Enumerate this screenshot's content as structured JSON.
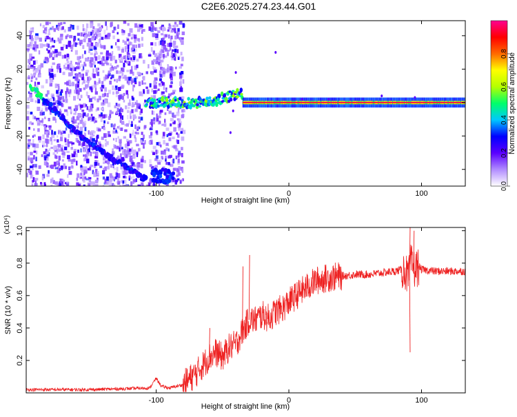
{
  "title": "C2E6.2025.274.23.44.G01",
  "chart_data": [
    {
      "type": "heatmap",
      "xlabel": "Height of straight line (km)",
      "ylabel": "Frequency (Hz)",
      "xlim": [
        -198,
        133
      ],
      "ylim": [
        -50,
        49
      ],
      "xticks": [
        -100,
        0,
        100
      ],
      "yticks": [
        -40,
        -20,
        0,
        20,
        40
      ],
      "colorbar": {
        "label": "Normalized spectral amplitude",
        "range": [
          0,
          1
        ],
        "ticks": [
          0.0,
          0.2,
          0.4,
          0.6,
          0.8
        ],
        "colors": [
          "#ffffff",
          "#b18cff",
          "#5a00ff",
          "#0000ff",
          "#00c8ff",
          "#00ff6a",
          "#b4ff00",
          "#ffff00",
          "#ff6a00",
          "#ff0000",
          "#ff0090"
        ]
      },
      "features": {
        "carrier_line": {
          "x_range": [
            -35,
            133
          ],
          "frequency": 0,
          "amplitude": 0.95
        },
        "chirp_branch": {
          "x": [
            -195,
            -180,
            -160,
            -140,
            -120,
            -108
          ],
          "frequency": [
            10,
            -2,
            -18,
            -30,
            -40,
            -46
          ]
        },
        "noise_region": {
          "x_range": [
            -198,
            -80
          ]
        },
        "gap_columns": [
          -110,
          -85
        ]
      }
    },
    {
      "type": "line",
      "xlabel": "Height of straight line (km)",
      "ylabel": "SNR (10 * v/v)",
      "y_multiplier": "(x10⁴)",
      "xlim": [
        -198,
        133
      ],
      "ylim": [
        0,
        1.02
      ],
      "xticks": [
        -100,
        0,
        100
      ],
      "yticks": [
        0.2,
        0.4,
        0.6,
        0.8,
        1.0
      ],
      "series": [
        {
          "color": "#ff0000",
          "x": [
            -198,
            -150,
            -105,
            -100,
            -96,
            -90,
            -80,
            -70,
            -60,
            -55,
            -50,
            -45,
            -40,
            -35,
            -30,
            -25,
            -20,
            -15,
            -10,
            -5,
            0,
            10,
            20,
            30,
            40,
            50,
            60,
            70,
            80,
            85,
            88,
            90,
            92,
            95,
            98,
            100,
            110,
            120,
            133
          ],
          "y": [
            0.02,
            0.02,
            0.03,
            0.09,
            0.04,
            0.03,
            0.05,
            0.12,
            0.22,
            0.25,
            0.22,
            0.28,
            0.3,
            0.38,
            0.45,
            0.45,
            0.48,
            0.46,
            0.5,
            0.52,
            0.56,
            0.63,
            0.69,
            0.71,
            0.72,
            0.73,
            0.73,
            0.74,
            0.75,
            0.76,
            0.75,
            0.7,
            0.8,
            0.76,
            0.78,
            0.76,
            0.75,
            0.75,
            0.75
          ]
        }
      ],
      "spikes": [
        {
          "x": -30,
          "y": 0.85
        },
        {
          "x": -60,
          "y": 0.4
        },
        {
          "x": -35,
          "y": 0.78
        },
        {
          "x": 91,
          "y": 0.25
        },
        {
          "x": 91,
          "y": 1.02
        },
        {
          "x": 94,
          "y": 1.0
        }
      ]
    }
  ]
}
